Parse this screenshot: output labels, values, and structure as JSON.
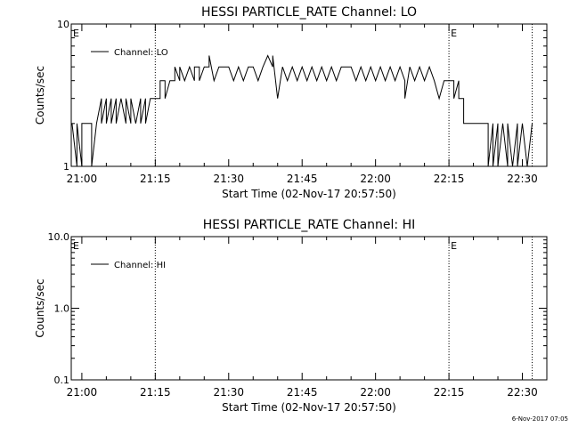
{
  "footer": {
    "timestamp": "6-Nov-2017 07:05"
  },
  "chart_data": [
    {
      "type": "line",
      "title": "HESSI PARTICLE_RATE Channel: LO",
      "xlabel": "Start Time (02-Nov-17 20:57:50)",
      "ylabel": "Counts/sec",
      "yscale": "log",
      "ylim": [
        1,
        10
      ],
      "yticks": [
        "1",
        "10"
      ],
      "xlim": [
        "20:57:50",
        "22:35:00"
      ],
      "xticks": [
        "21:00",
        "21:15",
        "21:30",
        "21:45",
        "22:00",
        "22:15",
        "22:30"
      ],
      "legend": {
        "label": "Channel: LO",
        "position": "top-left"
      },
      "event_markers": [
        {
          "time": "20:57:50",
          "label": "E"
        },
        {
          "time": "22:15",
          "label": "E"
        }
      ],
      "vlines": [
        "21:15",
        "22:15",
        "22:32"
      ],
      "series": [
        {
          "name": "Channel: LO",
          "points": [
            [
              "20:58",
              2
            ],
            [
              "20:59",
              1
            ],
            [
              "20:59",
              2
            ],
            [
              "21:00",
              1
            ],
            [
              "21:00",
              2
            ],
            [
              "21:02",
              2
            ],
            [
              "21:02",
              1
            ],
            [
              "21:03",
              2
            ],
            [
              "21:03",
              2
            ],
            [
              "21:04",
              3
            ],
            [
              "21:04",
              2
            ],
            [
              "21:05",
              3
            ],
            [
              "21:05",
              2
            ],
            [
              "21:06",
              3
            ],
            [
              "21:06",
              2
            ],
            [
              "21:07",
              3
            ],
            [
              "21:07",
              2
            ],
            [
              "21:08",
              3
            ],
            [
              "21:09",
              2
            ],
            [
              "21:09",
              3
            ],
            [
              "21:10",
              2
            ],
            [
              "21:10",
              3
            ],
            [
              "21:11",
              2
            ],
            [
              "21:12",
              3
            ],
            [
              "21:12",
              2
            ],
            [
              "21:13",
              3
            ],
            [
              "21:13",
              2
            ],
            [
              "21:14",
              3
            ],
            [
              "21:15",
              3
            ],
            [
              "21:16",
              3
            ],
            [
              "21:16",
              4
            ],
            [
              "21:17",
              4
            ],
            [
              "21:17",
              3
            ],
            [
              "21:18",
              4
            ],
            [
              "21:19",
              4
            ],
            [
              "21:19",
              5
            ],
            [
              "21:20",
              4
            ],
            [
              "21:20",
              5
            ],
            [
              "21:21",
              4
            ],
            [
              "21:22",
              5
            ],
            [
              "21:23",
              4
            ],
            [
              "21:23",
              5
            ],
            [
              "21:24",
              5
            ],
            [
              "21:24",
              4
            ],
            [
              "21:25",
              5
            ],
            [
              "21:26",
              5
            ],
            [
              "21:26",
              6
            ],
            [
              "21:27",
              4
            ],
            [
              "21:28",
              5
            ],
            [
              "21:30",
              5
            ],
            [
              "21:31",
              4
            ],
            [
              "21:32",
              5
            ],
            [
              "21:33",
              4
            ],
            [
              "21:34",
              5
            ],
            [
              "21:35",
              5
            ],
            [
              "21:36",
              4
            ],
            [
              "21:37",
              5
            ],
            [
              "21:38",
              6
            ],
            [
              "21:39",
              5
            ],
            [
              "21:39",
              6
            ],
            [
              "21:40",
              3
            ],
            [
              "21:41",
              5
            ],
            [
              "21:42",
              4
            ],
            [
              "21:43",
              5
            ],
            [
              "21:44",
              4
            ],
            [
              "21:45",
              5
            ],
            [
              "21:46",
              4
            ],
            [
              "21:47",
              5
            ],
            [
              "21:48",
              4
            ],
            [
              "21:49",
              5
            ],
            [
              "21:50",
              4
            ],
            [
              "21:51",
              5
            ],
            [
              "21:52",
              4
            ],
            [
              "21:53",
              5
            ],
            [
              "21:55",
              5
            ],
            [
              "21:56",
              4
            ],
            [
              "21:57",
              5
            ],
            [
              "21:58",
              4
            ],
            [
              "21:59",
              5
            ],
            [
              "22:00",
              4
            ],
            [
              "22:01",
              5
            ],
            [
              "22:02",
              4
            ],
            [
              "22:03",
              5
            ],
            [
              "22:04",
              4
            ],
            [
              "22:05",
              5
            ],
            [
              "22:06",
              4
            ],
            [
              "22:06",
              3
            ],
            [
              "22:07",
              5
            ],
            [
              "22:08",
              4
            ],
            [
              "22:09",
              5
            ],
            [
              "22:10",
              4
            ],
            [
              "22:11",
              5
            ],
            [
              "22:12",
              4
            ],
            [
              "22:13",
              3
            ],
            [
              "22:14",
              4
            ],
            [
              "22:15",
              4
            ],
            [
              "22:16",
              4
            ],
            [
              "22:16",
              3
            ],
            [
              "22:17",
              4
            ],
            [
              "22:17",
              3
            ],
            [
              "22:18",
              3
            ],
            [
              "22:18",
              2
            ],
            [
              "22:19",
              2
            ],
            [
              "22:20",
              2
            ],
            [
              "22:21",
              2
            ],
            [
              "22:22",
              2
            ],
            [
              "22:23",
              2
            ],
            [
              "22:23",
              1
            ],
            [
              "22:24",
              2
            ],
            [
              "22:24",
              1
            ],
            [
              "22:25",
              2
            ],
            [
              "22:25",
              1
            ],
            [
              "22:26",
              2
            ],
            [
              "22:27",
              1
            ],
            [
              "22:27",
              2
            ],
            [
              "22:28",
              1
            ],
            [
              "22:29",
              2
            ],
            [
              "22:29",
              1
            ],
            [
              "22:30",
              2
            ],
            [
              "22:31",
              1
            ],
            [
              "22:32",
              2
            ]
          ]
        }
      ]
    },
    {
      "type": "line",
      "title": "HESSI PARTICLE_RATE Channel: HI",
      "xlabel": "Start Time (02-Nov-17 20:57:50)",
      "ylabel": "Counts/sec",
      "yscale": "log",
      "ylim": [
        0.1,
        10
      ],
      "yticks": [
        "0.1",
        "1.0",
        "10.0"
      ],
      "xlim": [
        "20:57:50",
        "22:35:00"
      ],
      "xticks": [
        "21:00",
        "21:15",
        "21:30",
        "21:45",
        "22:00",
        "22:15",
        "22:30"
      ],
      "legend": {
        "label": "Channel: HI",
        "position": "top-left"
      },
      "event_markers": [
        {
          "time": "20:57:50",
          "label": "E"
        },
        {
          "time": "22:15",
          "label": "E"
        }
      ],
      "vlines": [
        "21:15",
        "22:15",
        "22:32"
      ],
      "series": [
        {
          "name": "Channel: HI",
          "points": []
        }
      ]
    }
  ]
}
